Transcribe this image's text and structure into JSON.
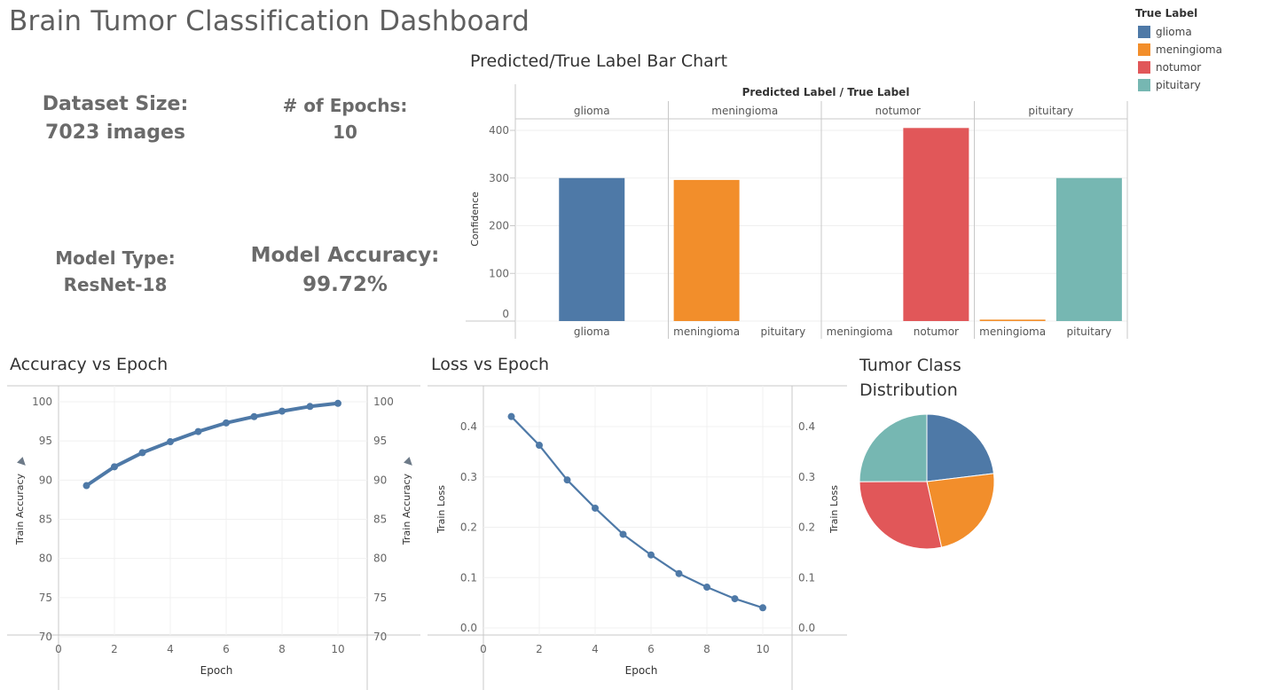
{
  "dashboard": {
    "title": "Brain Tumor Classification Dashboard"
  },
  "kpis": {
    "dataset": {
      "label": "Dataset Size:",
      "value": "7023 images"
    },
    "epochs": {
      "label": "# of Epochs:",
      "value": "10"
    },
    "model": {
      "label": "Model Type:",
      "value": "ResNet-18"
    },
    "accuracy": {
      "label": "Model Accuracy:",
      "value": "99.72%"
    }
  },
  "legend": {
    "title": "True Label",
    "items": [
      {
        "label": "glioma",
        "color": "#4e79a7"
      },
      {
        "label": "meningioma",
        "color": "#f28e2b"
      },
      {
        "label": "notumor",
        "color": "#e15759"
      },
      {
        "label": "pituitary",
        "color": "#76b7b2"
      }
    ]
  },
  "chart_data": [
    {
      "type": "bar",
      "title": "Predicted/True Label Bar Chart",
      "header": "Predicted Label / True Label",
      "ylabel": "Confidence",
      "ylim": [
        0,
        420
      ],
      "yticks": [
        0,
        100,
        200,
        300,
        400
      ],
      "groups": [
        {
          "name": "glioma",
          "bars": [
            {
              "label": "glioma",
              "value": 300,
              "color": "#4e79a7"
            }
          ]
        },
        {
          "name": "meningioma",
          "bars": [
            {
              "label": "meningioma",
              "value": 296,
              "color": "#f28e2b"
            },
            {
              "label": "pituitary",
              "value": 0,
              "color": "#76b7b2"
            }
          ]
        },
        {
          "name": "notumor",
          "bars": [
            {
              "label": "meningioma",
              "value": 0,
              "color": "#f28e2b"
            },
            {
              "label": "notumor",
              "value": 405,
              "color": "#e15759"
            }
          ]
        },
        {
          "name": "pituitary",
          "bars": [
            {
              "label": "meningioma",
              "value": 3,
              "color": "#f28e2b"
            },
            {
              "label": "pituitary",
              "value": 300,
              "color": "#76b7b2"
            }
          ]
        }
      ]
    },
    {
      "type": "line",
      "title": "Accuracy vs Epoch",
      "xlabel": "Epoch",
      "ylabel": "Train Accuracy",
      "x": [
        1,
        2,
        3,
        4,
        5,
        6,
        7,
        8,
        9,
        10
      ],
      "y": [
        89.3,
        91.7,
        93.5,
        94.9,
        96.2,
        97.3,
        98.1,
        98.8,
        99.4,
        99.8
      ],
      "xticks": [
        0,
        2,
        4,
        6,
        8,
        10
      ],
      "yticks": [
        70,
        75,
        80,
        85,
        90,
        95,
        100
      ],
      "xlim": [
        0,
        10
      ],
      "ylim": [
        70,
        100
      ],
      "color": "#4e79a7"
    },
    {
      "type": "line",
      "title": "Loss vs Epoch",
      "xlabel": "Epoch",
      "ylabel": "Train Loss",
      "x": [
        1,
        2,
        3,
        4,
        5,
        6,
        7,
        8,
        9,
        10
      ],
      "y": [
        0.42,
        0.363,
        0.294,
        0.238,
        0.186,
        0.145,
        0.108,
        0.081,
        0.058,
        0.04
      ],
      "xticks": [
        0,
        2,
        4,
        6,
        8,
        10
      ],
      "yticks": [
        0.0,
        0.1,
        0.2,
        0.3,
        0.4
      ],
      "ytick_labels": [
        "0.0",
        "0.1",
        "0.2",
        "0.3",
        "0.4"
      ],
      "xlim": [
        0,
        10
      ],
      "ylim": [
        0,
        0.43
      ],
      "color": "#4e79a7"
    },
    {
      "type": "pie",
      "title": "Tumor Class Distribution",
      "slices": [
        {
          "label": "glioma",
          "value": 1621,
          "color": "#4e79a7"
        },
        {
          "label": "meningioma",
          "value": 1645,
          "color": "#f28e2b"
        },
        {
          "label": "notumor",
          "value": 2000,
          "color": "#e15759"
        },
        {
          "label": "pituitary",
          "value": 1757,
          "color": "#76b7b2"
        }
      ]
    }
  ]
}
